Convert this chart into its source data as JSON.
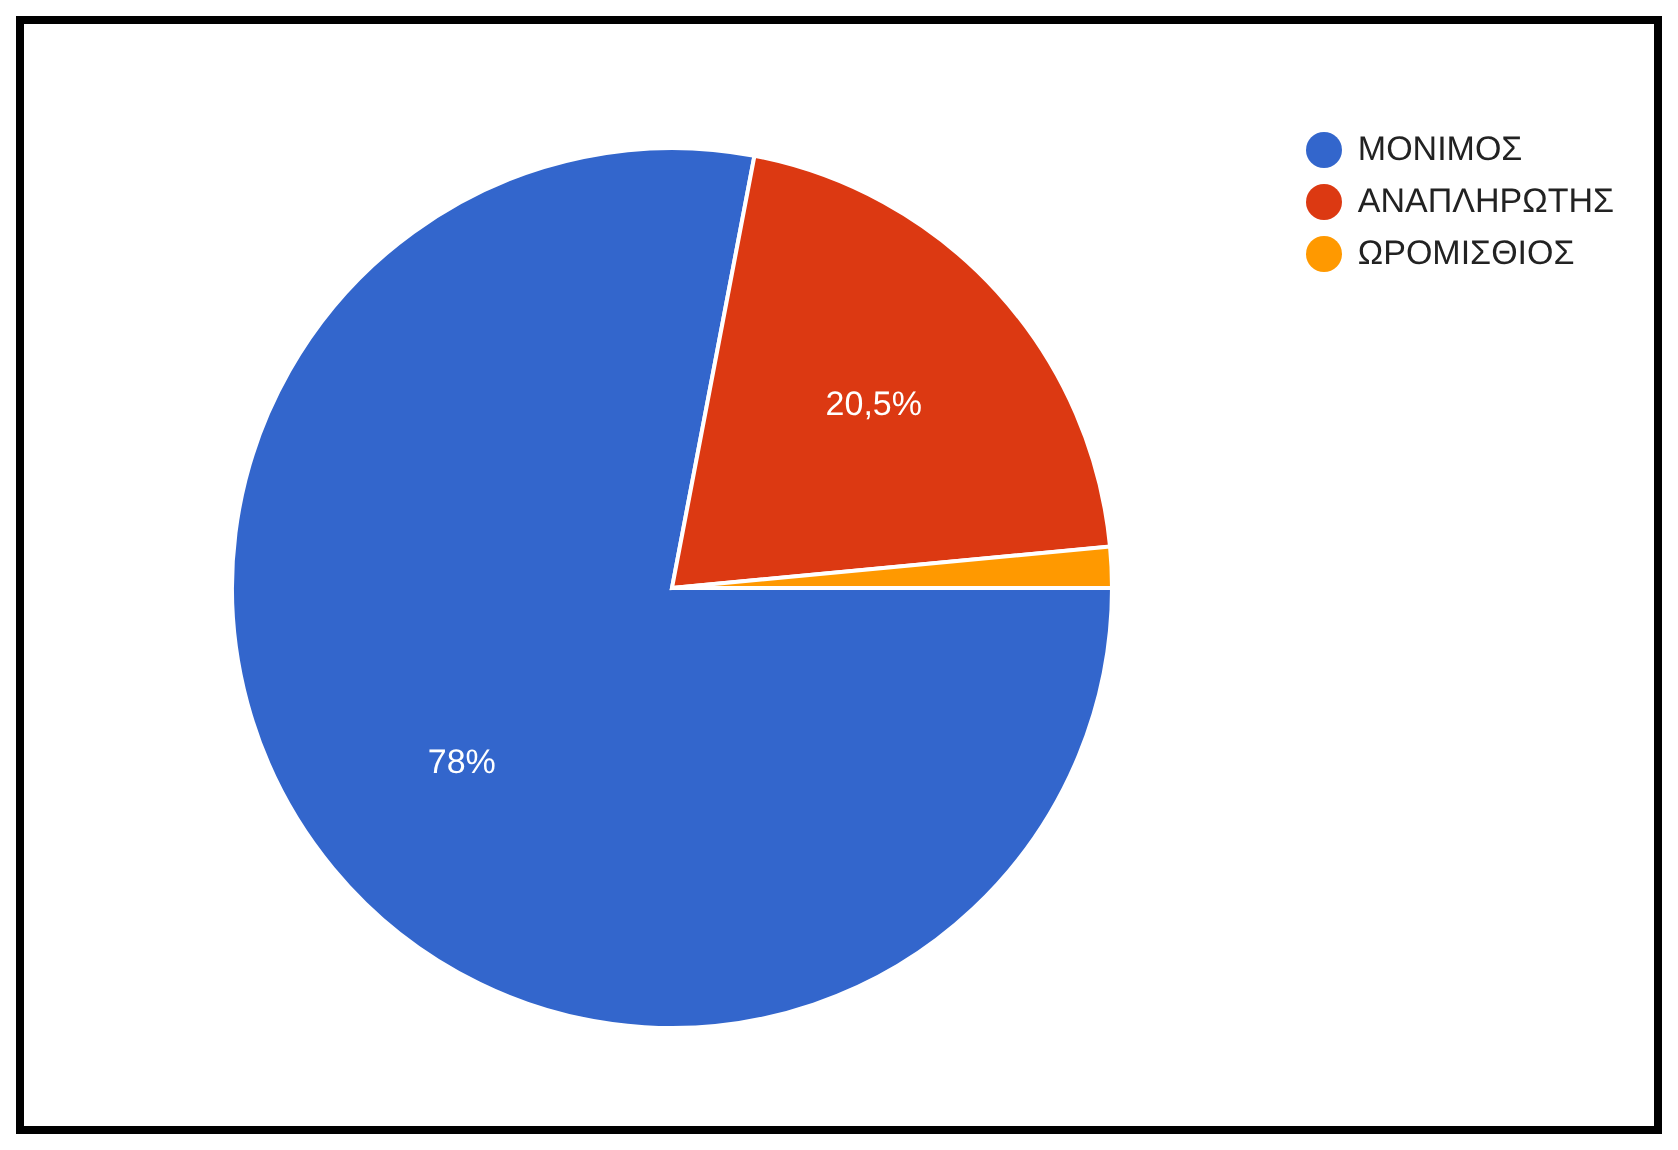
{
  "chart_data": {
    "type": "pie",
    "categories": [
      "ΜΟΝΙΜΟΣ",
      "ΑΝΑΠΛΗΡΩΤΗΣ",
      "ΩΡΟΜΙΣΘΙΟΣ"
    ],
    "values": [
      78,
      20.5,
      1.5
    ],
    "colors": [
      "#3366cc",
      "#dc3912",
      "#ff9900"
    ],
    "value_labels": [
      "78%",
      "20,5%",
      null
    ],
    "legend": "top right"
  }
}
